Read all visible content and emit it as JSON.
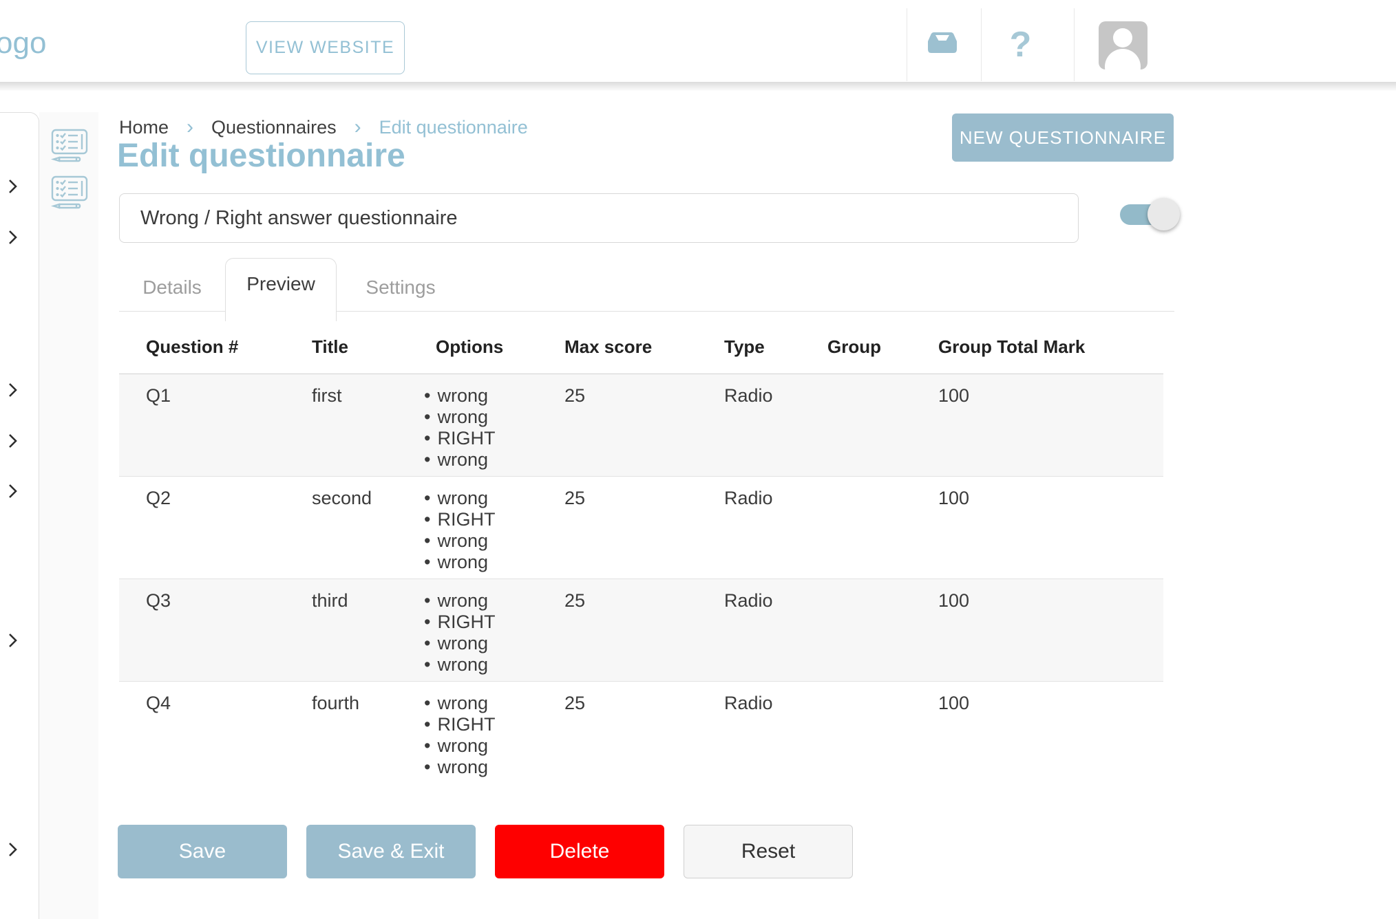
{
  "window": {
    "top_edge_buttons": 2
  },
  "header": {
    "logo_text": "ogo",
    "view_website_label": "VIEW WEBSITE",
    "inbox_icon": "inbox-tray",
    "help_label": "?",
    "avatar_icon": "person-silhouette"
  },
  "sidebar": {
    "expand_chevrons": 7,
    "menu_icons": [
      "questionnaire-icon",
      "questionnaire-icon"
    ]
  },
  "main": {
    "breadcrumb": {
      "items": [
        "Home",
        "Questionnaires",
        "Edit questionnaire"
      ],
      "separator": "›"
    },
    "page_title": "Edit questionnaire",
    "new_questionnaire_label": "NEW QUESTIONNAIRE",
    "name_input": {
      "value": "Wrong / Right answer questionnaire"
    },
    "active_toggle": {
      "state": "on"
    },
    "tabs": [
      {
        "label": "Details",
        "active": false
      },
      {
        "label": "Preview",
        "active": true
      },
      {
        "label": "Settings",
        "active": false
      }
    ],
    "table": {
      "columns": [
        "Question #",
        "Title",
        "Options",
        "Max score",
        "Type",
        "Group",
        "Group Total Mark"
      ],
      "rows": [
        {
          "question_number": "Q1",
          "title": "first",
          "options": [
            "wrong",
            "wrong",
            "RIGHT",
            "wrong"
          ],
          "max_score": "25",
          "type": "Radio",
          "group": "",
          "group_total_mark": "100"
        },
        {
          "question_number": "Q2",
          "title": "second",
          "options": [
            "wrong",
            "RIGHT",
            "wrong",
            "wrong"
          ],
          "max_score": "25",
          "type": "Radio",
          "group": "",
          "group_total_mark": "100"
        },
        {
          "question_number": "Q3",
          "title": "third",
          "options": [
            "wrong",
            "RIGHT",
            "wrong",
            "wrong"
          ],
          "max_score": "25",
          "type": "Radio",
          "group": "",
          "group_total_mark": "100"
        },
        {
          "question_number": "Q4",
          "title": "fourth",
          "options": [
            "wrong",
            "RIGHT",
            "wrong",
            "wrong"
          ],
          "max_score": "25",
          "type": "Radio",
          "group": "",
          "group_total_mark": "100"
        }
      ]
    },
    "actions": [
      {
        "label": "Save",
        "variant": "primary"
      },
      {
        "label": "Save & Exit",
        "variant": "primary"
      },
      {
        "label": "Delete",
        "variant": "danger"
      },
      {
        "label": "Reset",
        "variant": "neutral"
      }
    ]
  },
  "colors": {
    "accent_text": "#93c0d4",
    "accent_button": "#9abccd",
    "toggle_track": "#93bac9",
    "icon_blue": "#a6c8d6",
    "danger": "#fe0000",
    "row_stripe": "#f7f7f7"
  }
}
